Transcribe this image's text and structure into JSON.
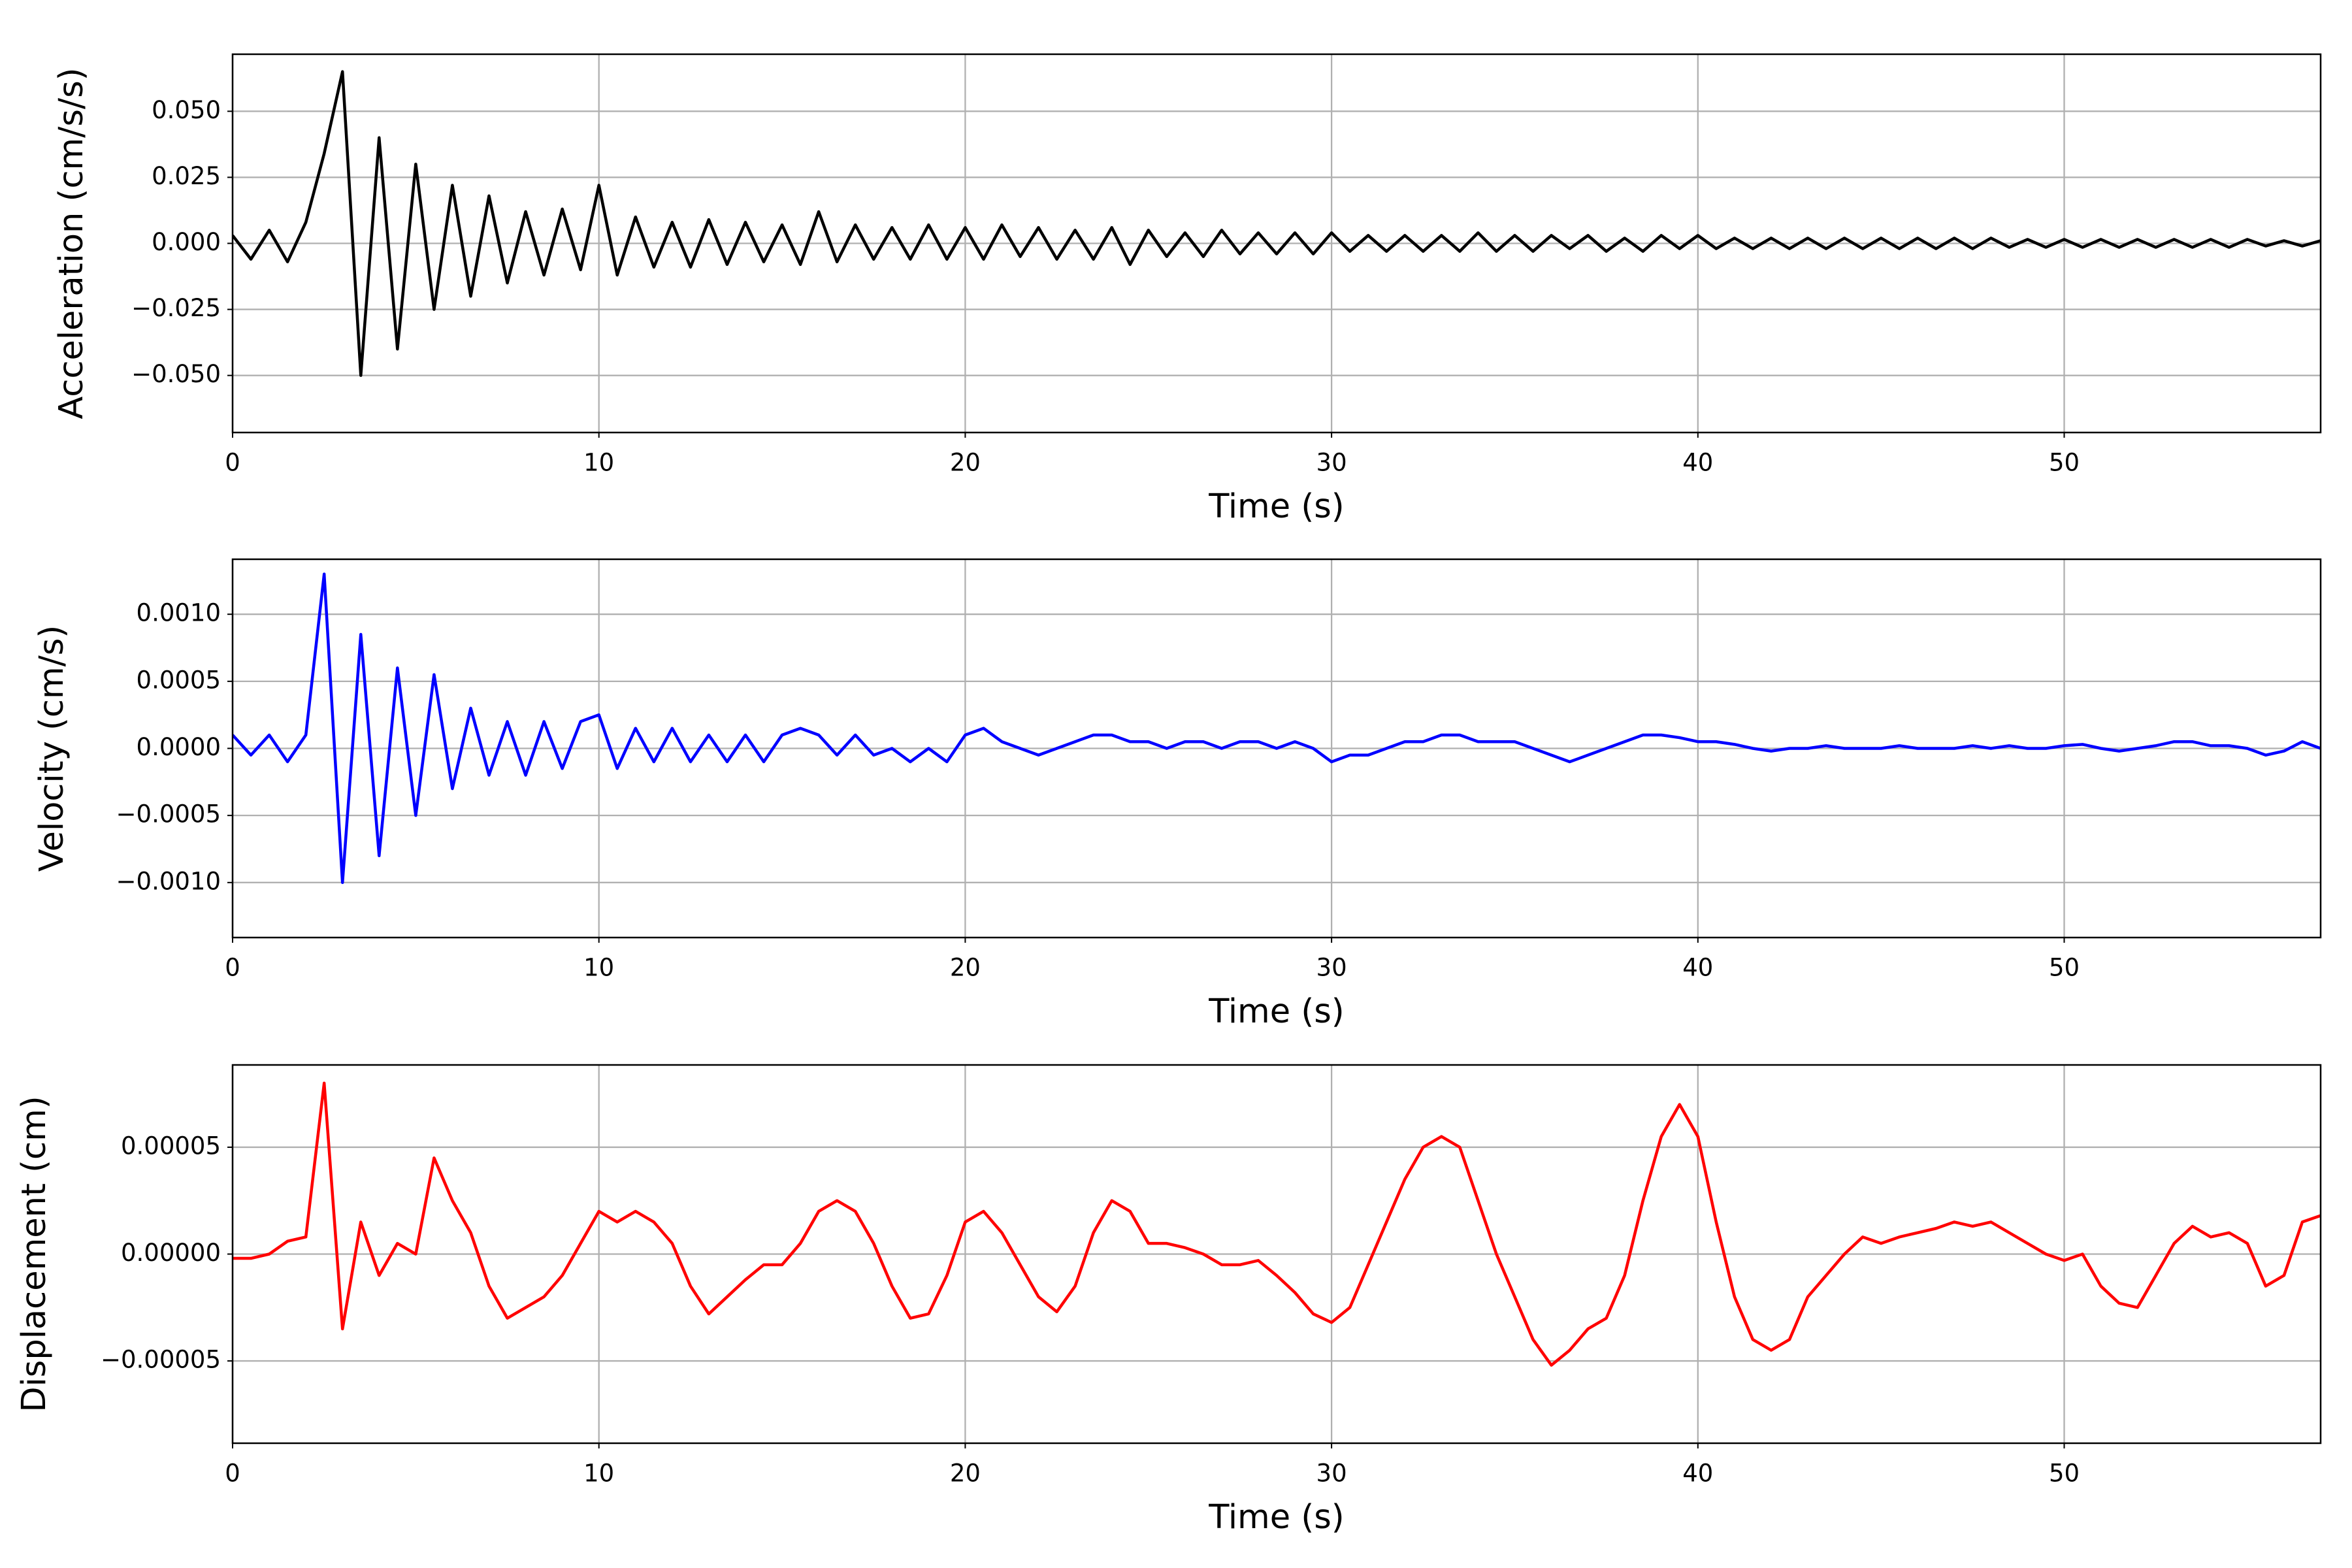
{
  "chart_data": [
    {
      "type": "line",
      "y_label": "Acceleration (cm/s/s)",
      "x_label": "Time (s)",
      "color": "#000000",
      "grid": true,
      "xlim": [
        0,
        57
      ],
      "xticks": [
        0,
        10,
        20,
        30,
        40,
        50
      ],
      "ylim": [
        -0.0716,
        0.0716
      ],
      "yticks": [
        {
          "value": -0.05,
          "label": "−0.050"
        },
        {
          "value": -0.025,
          "label": "−0.025"
        },
        {
          "value": 0,
          "label": "0.000"
        },
        {
          "value": 0.025,
          "label": "0.025"
        },
        {
          "value": 0.05,
          "label": "0.050"
        }
      ],
      "x": [
        0,
        0.5,
        1,
        1.5,
        2,
        2.5,
        3,
        3.5,
        4,
        4.5,
        5,
        5.5,
        6,
        6.5,
        7,
        7.5,
        8,
        8.5,
        9,
        9.5,
        10,
        10.5,
        11,
        11.5,
        12,
        12.5,
        13,
        13.5,
        14,
        14.5,
        15,
        15.5,
        16,
        16.5,
        17,
        17.5,
        18,
        18.5,
        19,
        19.5,
        20,
        20.5,
        21,
        21.5,
        22,
        22.5,
        23,
        23.5,
        24,
        24.5,
        25,
        25.5,
        26,
        26.5,
        27,
        27.5,
        28,
        28.5,
        29,
        29.5,
        30,
        30.5,
        31,
        31.5,
        32,
        32.5,
        33,
        33.5,
        34,
        34.5,
        35,
        35.5,
        36,
        36.5,
        37,
        37.5,
        38,
        38.5,
        39,
        39.5,
        40,
        40.5,
        41,
        41.5,
        42,
        42.5,
        43,
        43.5,
        44,
        44.5,
        45,
        45.5,
        46,
        46.5,
        47,
        47.5,
        48,
        48.5,
        49,
        49.5,
        50,
        50.5,
        51,
        51.5,
        52,
        52.5,
        53,
        53.5,
        54,
        54.5,
        55,
        55.5,
        56,
        56.5,
        57
      ],
      "values": [
        0.003,
        -0.006,
        0.005,
        -0.007,
        0.008,
        0.034,
        0.065,
        -0.05,
        0.04,
        -0.04,
        0.03,
        -0.025,
        0.022,
        -0.02,
        0.018,
        -0.015,
        0.012,
        -0.012,
        0.013,
        -0.01,
        0.022,
        -0.012,
        0.01,
        -0.009,
        0.008,
        -0.009,
        0.009,
        -0.008,
        0.008,
        -0.007,
        0.007,
        -0.008,
        0.012,
        -0.007,
        0.007,
        -0.006,
        0.006,
        -0.006,
        0.007,
        -0.006,
        0.006,
        -0.006,
        0.007,
        -0.005,
        0.006,
        -0.006,
        0.005,
        -0.006,
        0.006,
        -0.008,
        0.005,
        -0.005,
        0.004,
        -0.005,
        0.005,
        -0.004,
        0.004,
        -0.004,
        0.004,
        -0.004,
        0.004,
        -0.003,
        0.003,
        -0.003,
        0.003,
        -0.003,
        0.003,
        -0.003,
        0.004,
        -0.003,
        0.003,
        -0.003,
        0.003,
        -0.002,
        0.003,
        -0.003,
        0.002,
        -0.003,
        0.003,
        -0.002,
        0.003,
        -0.002,
        0.002,
        -0.002,
        0.002,
        -0.002,
        0.002,
        -0.002,
        0.002,
        -0.002,
        0.002,
        -0.002,
        0.002,
        -0.002,
        0.002,
        -0.002,
        0.002,
        -0.0015,
        0.0015,
        -0.0015,
        0.0015,
        -0.0015,
        0.0015,
        -0.0015,
        0.0015,
        -0.0015,
        0.0015,
        -0.0015,
        0.0015,
        -0.0015,
        0.0015,
        -0.001,
        0.001,
        -0.001,
        0.001
      ]
    },
    {
      "type": "line",
      "y_label": "Velocity (cm/s)",
      "x_label": "Time (s)",
      "color": "#0000ff",
      "grid": true,
      "xlim": [
        0,
        57
      ],
      "xticks": [
        0,
        10,
        20,
        30,
        40,
        50
      ],
      "ylim": [
        -0.00141,
        0.00141
      ],
      "yticks": [
        {
          "value": -0.001,
          "label": "−0.0010"
        },
        {
          "value": -0.0005,
          "label": "−0.0005"
        },
        {
          "value": 0,
          "label": "0.0000"
        },
        {
          "value": 0.0005,
          "label": "0.0005"
        },
        {
          "value": 0.001,
          "label": "0.0010"
        }
      ],
      "x": [
        0,
        0.5,
        1,
        1.5,
        2,
        2.5,
        3,
        3.5,
        4,
        4.5,
        5,
        5.5,
        6,
        6.5,
        7,
        7.5,
        8,
        8.5,
        9,
        9.5,
        10,
        10.5,
        11,
        11.5,
        12,
        12.5,
        13,
        13.5,
        14,
        14.5,
        15,
        15.5,
        16,
        16.5,
        17,
        17.5,
        18,
        18.5,
        19,
        19.5,
        20,
        20.5,
        21,
        21.5,
        22,
        22.5,
        23,
        23.5,
        24,
        24.5,
        25,
        25.5,
        26,
        26.5,
        27,
        27.5,
        28,
        28.5,
        29,
        29.5,
        30,
        30.5,
        31,
        31.5,
        32,
        32.5,
        33,
        33.5,
        34,
        34.5,
        35,
        35.5,
        36,
        36.5,
        37,
        37.5,
        38,
        38.5,
        39,
        39.5,
        40,
        40.5,
        41,
        41.5,
        42,
        42.5,
        43,
        43.5,
        44,
        44.5,
        45,
        45.5,
        46,
        46.5,
        47,
        47.5,
        48,
        48.5,
        49,
        49.5,
        50,
        50.5,
        51,
        51.5,
        52,
        52.5,
        53,
        53.5,
        54,
        54.5,
        55,
        55.5,
        56,
        56.5,
        57
      ],
      "values": [
        0.0001,
        -5e-05,
        0.0001,
        -0.0001,
        0.0001,
        0.0013,
        -0.001,
        0.00085,
        -0.0008,
        0.0006,
        -0.0005,
        0.00055,
        -0.0003,
        0.0003,
        -0.0002,
        0.0002,
        -0.0002,
        0.0002,
        -0.00015,
        0.0002,
        0.00025,
        -0.00015,
        0.00015,
        -0.0001,
        0.00015,
        -0.0001,
        0.0001,
        -0.0001,
        0.0001,
        -0.0001,
        0.0001,
        0.00015,
        0.0001,
        -5e-05,
        0.0001,
        -5e-05,
        0,
        -0.0001,
        0,
        -0.0001,
        0.0001,
        0.00015,
        5e-05,
        0,
        -5e-05,
        0,
        5e-05,
        0.0001,
        0.0001,
        5e-05,
        5e-05,
        0,
        5e-05,
        5e-05,
        0,
        5e-05,
        5e-05,
        0,
        5e-05,
        0,
        -0.0001,
        -5e-05,
        -5e-05,
        0,
        5e-05,
        5e-05,
        0.0001,
        0.0001,
        5e-05,
        5e-05,
        5e-05,
        0,
        -5e-05,
        -0.0001,
        -5e-05,
        0,
        5e-05,
        0.0001,
        0.0001,
        8e-05,
        5e-05,
        5e-05,
        3e-05,
        0,
        -2e-05,
        0,
        0,
        2e-05,
        0,
        0,
        0,
        2e-05,
        0,
        0,
        0,
        2e-05,
        0,
        2e-05,
        0,
        0,
        2e-05,
        3e-05,
        0,
        -2e-05,
        0,
        2e-05,
        5e-05,
        5e-05,
        2e-05,
        2e-05,
        0,
        -5e-05,
        -2e-05,
        5e-05,
        0
      ]
    },
    {
      "type": "line",
      "y_label": "Displacement (cm)",
      "x_label": "Time (s)",
      "color": "#ff0000",
      "grid": true,
      "xlim": [
        0,
        57
      ],
      "xticks": [
        0,
        10,
        20,
        30,
        40,
        50
      ],
      "ylim": [
        -8.85e-05,
        8.85e-05
      ],
      "yticks": [
        {
          "value": -5e-05,
          "label": "−0.00005"
        },
        {
          "value": 0,
          "label": "0.00000"
        },
        {
          "value": 5e-05,
          "label": "0.00005"
        }
      ],
      "x": [
        0,
        0.5,
        1,
        1.5,
        2,
        2.5,
        3,
        3.5,
        4,
        4.5,
        5,
        5.5,
        6,
        6.5,
        7,
        7.5,
        8,
        8.5,
        9,
        9.5,
        10,
        10.5,
        11,
        11.5,
        12,
        12.5,
        13,
        13.5,
        14,
        14.5,
        15,
        15.5,
        16,
        16.5,
        17,
        17.5,
        18,
        18.5,
        19,
        19.5,
        20,
        20.5,
        21,
        21.5,
        22,
        22.5,
        23,
        23.5,
        24,
        24.5,
        25,
        25.5,
        26,
        26.5,
        27,
        27.5,
        28,
        28.5,
        29,
        29.5,
        30,
        30.5,
        31,
        31.5,
        32,
        32.5,
        33,
        33.5,
        34,
        34.5,
        35,
        35.5,
        36,
        36.5,
        37,
        37.5,
        38,
        38.5,
        39,
        39.5,
        40,
        40.5,
        41,
        41.5,
        42,
        42.5,
        43,
        43.5,
        44,
        44.5,
        45,
        45.5,
        46,
        46.5,
        47,
        47.5,
        48,
        48.5,
        49,
        49.5,
        50,
        50.5,
        51,
        51.5,
        52,
        52.5,
        53,
        53.5,
        54,
        54.5,
        55,
        55.5,
        56,
        56.5,
        57
      ],
      "values": [
        -2e-06,
        -2e-06,
        0,
        6e-06,
        8e-06,
        8e-05,
        -3.5e-05,
        1.5e-05,
        -1e-05,
        5e-06,
        0,
        4.5e-05,
        2.5e-05,
        1e-05,
        -1.5e-05,
        -3e-05,
        -2.5e-05,
        -2e-05,
        -1e-05,
        5e-06,
        2e-05,
        1.5e-05,
        2e-05,
        1.5e-05,
        5e-06,
        -1.5e-05,
        -2.8e-05,
        -2e-05,
        -1.2e-05,
        -5e-06,
        -5e-06,
        5e-06,
        2e-05,
        2.5e-05,
        2e-05,
        5e-06,
        -1.5e-05,
        -3e-05,
        -2.8e-05,
        -1e-05,
        1.5e-05,
        2e-05,
        1e-05,
        -5e-06,
        -2e-05,
        -2.7e-05,
        -1.5e-05,
        1e-05,
        2.5e-05,
        2e-05,
        5e-06,
        5e-06,
        3e-06,
        0,
        -5e-06,
        -5e-06,
        -3e-06,
        -1e-05,
        -1.8e-05,
        -2.8e-05,
        -3.2e-05,
        -2.5e-05,
        -5e-06,
        1.5e-05,
        3.5e-05,
        5e-05,
        5.5e-05,
        5e-05,
        2.5e-05,
        0,
        -2e-05,
        -4e-05,
        -5.2e-05,
        -4.5e-05,
        -3.5e-05,
        -3e-05,
        -1e-05,
        2.5e-05,
        5.5e-05,
        7e-05,
        5.5e-05,
        1.5e-05,
        -2e-05,
        -4e-05,
        -4.5e-05,
        -4e-05,
        -2e-05,
        -1e-05,
        0,
        8e-06,
        5e-06,
        8e-06,
        1e-05,
        1.2e-05,
        1.5e-05,
        1.3e-05,
        1.5e-05,
        1e-05,
        5e-06,
        0,
        -3e-06,
        0,
        -1.5e-05,
        -2.3e-05,
        -2.5e-05,
        -1e-05,
        5e-06,
        1.3e-05,
        8e-06,
        1e-05,
        5e-06,
        -1.5e-05,
        -1e-05,
        1.5e-05,
        1.8e-05
      ]
    }
  ]
}
